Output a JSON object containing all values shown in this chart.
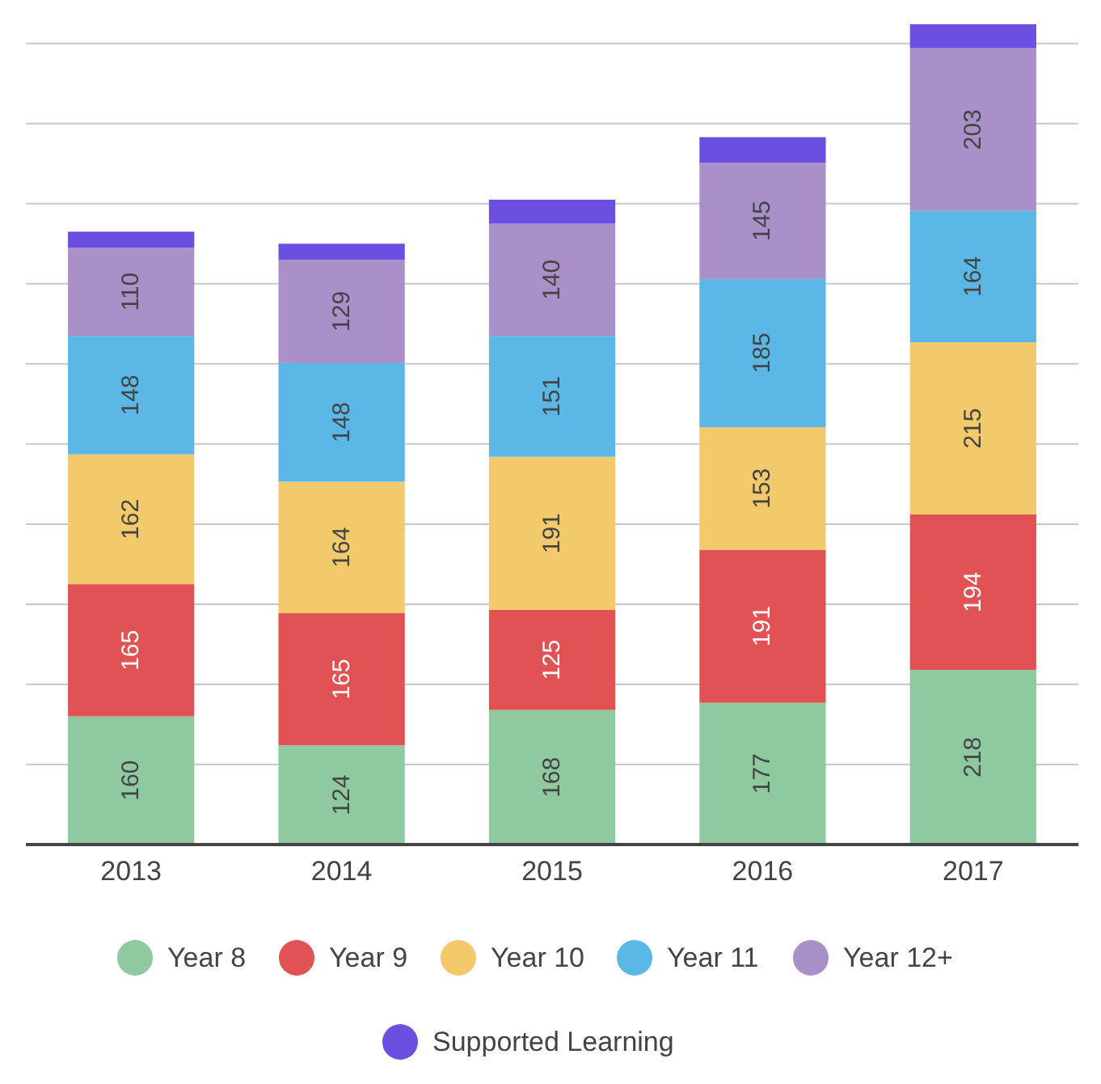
{
  "chart_data": {
    "type": "bar",
    "stacked": true,
    "categories": [
      "2013",
      "2014",
      "2015",
      "2016",
      "2017"
    ],
    "series": [
      {
        "name": "Year 8",
        "color": "#8ec9a0",
        "values": [
          160,
          124,
          168,
          177,
          218
        ],
        "value_labels": [
          "160",
          "124",
          "168",
          "177",
          "218"
        ]
      },
      {
        "name": "Year 9",
        "color": "#e05254",
        "values": [
          165,
          165,
          125,
          191,
          194
        ],
        "value_labels": [
          "165",
          "165",
          "125",
          "191",
          "194"
        ]
      },
      {
        "name": "Year 10",
        "color": "#f2c96b",
        "values": [
          162,
          164,
          191,
          153,
          215
        ],
        "value_labels": [
          "162",
          "164",
          "191",
          "153",
          "215"
        ]
      },
      {
        "name": "Year 11",
        "color": "#5bb8e6",
        "values": [
          148,
          148,
          151,
          185,
          164
        ],
        "value_labels": [
          "148",
          "148",
          "151",
          "185",
          "164"
        ]
      },
      {
        "name": "Year 12+",
        "color": "#a990c8",
        "values": [
          110,
          129,
          140,
          145,
          203
        ],
        "value_labels": [
          "110",
          "129",
          "140",
          "145",
          "203"
        ]
      },
      {
        "name": "Supported Learning",
        "color": "#6a4fe0",
        "values": [
          20,
          20,
          30,
          32,
          30
        ]
      }
    ],
    "ylim": [
      0,
      1030
    ],
    "yticks": [
      {
        "value": 0,
        "label": null
      },
      {
        "value": 100,
        "label": null
      },
      {
        "value": 200,
        "label": null
      },
      {
        "value": 300,
        "label": null
      },
      {
        "value": 400,
        "label": null
      },
      {
        "value": 500,
        "label": null
      },
      {
        "value": 600,
        "label": null
      },
      {
        "value": 700,
        "label": null
      },
      {
        "value": 800,
        "label": null
      },
      {
        "value": 900,
        "label": null
      },
      {
        "value": 1000,
        "label": null
      }
    ],
    "grid": "y",
    "legend": "bottom",
    "tick_labels": "x"
  }
}
